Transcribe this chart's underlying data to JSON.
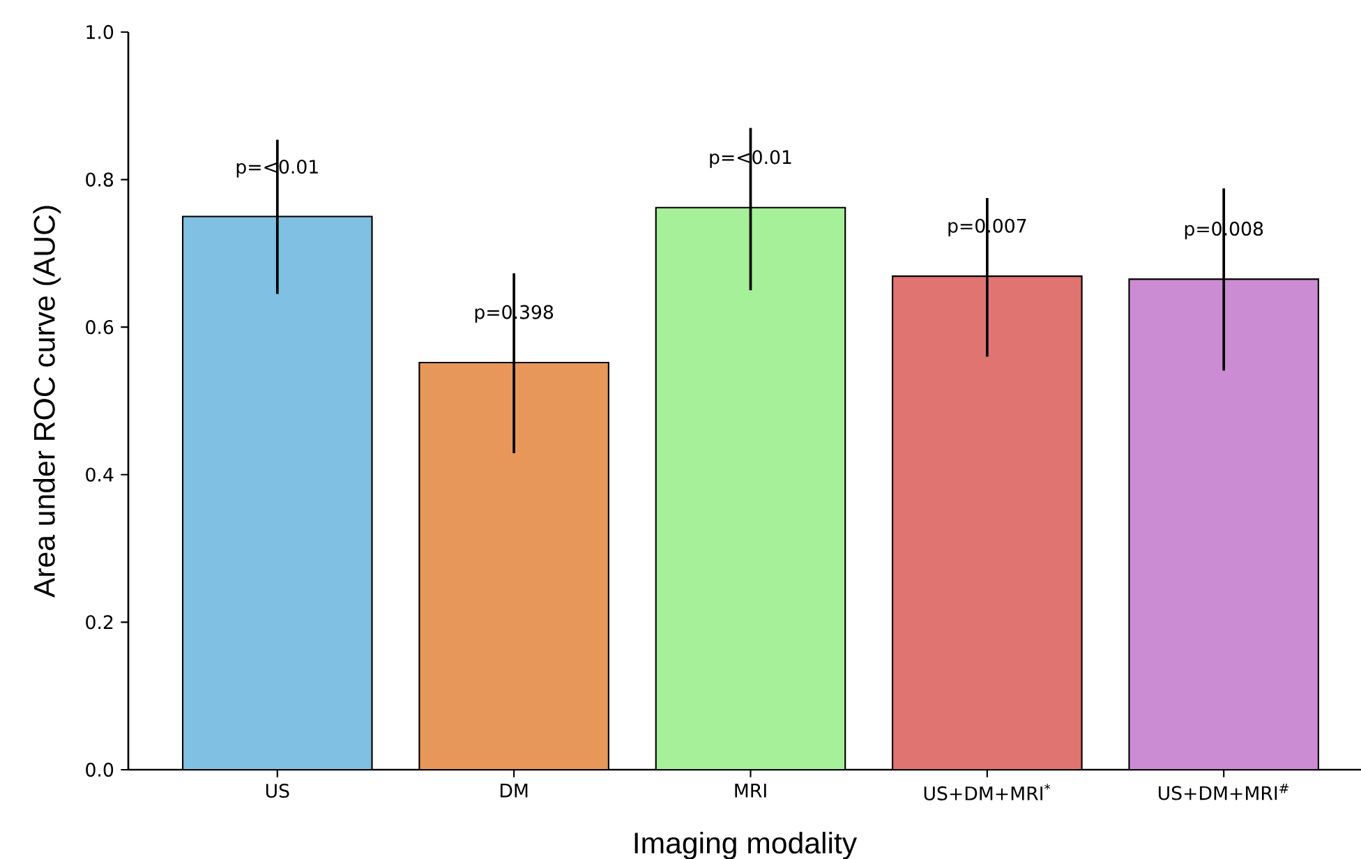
{
  "chart_data": {
    "type": "bar",
    "xlabel": "Imaging modality",
    "ylabel": "Area under ROC curve (AUC)",
    "categories": [
      "US",
      "DM",
      "MRI",
      "US+DM+MRI$^{*}$",
      "US+DM+MRI$^{#}$"
    ],
    "values": [
      0.75,
      0.552,
      0.762,
      0.669,
      0.665
    ],
    "colors": [
      "#80c0e2",
      "#e8975a",
      "#a6f09a",
      "#e07470",
      "#cc8cd4"
    ],
    "errors": [
      [
        0.645,
        0.854
      ],
      [
        0.429,
        0.673
      ],
      [
        0.65,
        0.87
      ],
      [
        0.56,
        0.775
      ],
      [
        0.541,
        0.788
      ]
    ],
    "ylim": [
      0,
      1
    ],
    "yticks": [
      {
        "value": 0,
        "label": "0.0"
      },
      {
        "value": 0.2,
        "label": "0.2"
      },
      {
        "value": 0.4,
        "label": "0.4"
      },
      {
        "value": 0.6,
        "label": "0.6"
      },
      {
        "value": 0.8,
        "label": "0.8"
      },
      {
        "value": 1,
        "label": "1.0"
      }
    ],
    "annotations": [
      {
        "text": "p=<0.01",
        "x": "US",
        "y": 0.815
      },
      {
        "text": "p=0.398",
        "x": "DM",
        "y": 0.618
      },
      {
        "text": "p=<0.01",
        "x": "MRI",
        "y": 0.828
      },
      {
        "text": "p=0.007",
        "x": "US+DM+MRI$^{*}$",
        "y": 0.735
      },
      {
        "text": "p=0.008",
        "x": "US+DM+MRI$^{#}$",
        "y": 0.731
      }
    ]
  }
}
